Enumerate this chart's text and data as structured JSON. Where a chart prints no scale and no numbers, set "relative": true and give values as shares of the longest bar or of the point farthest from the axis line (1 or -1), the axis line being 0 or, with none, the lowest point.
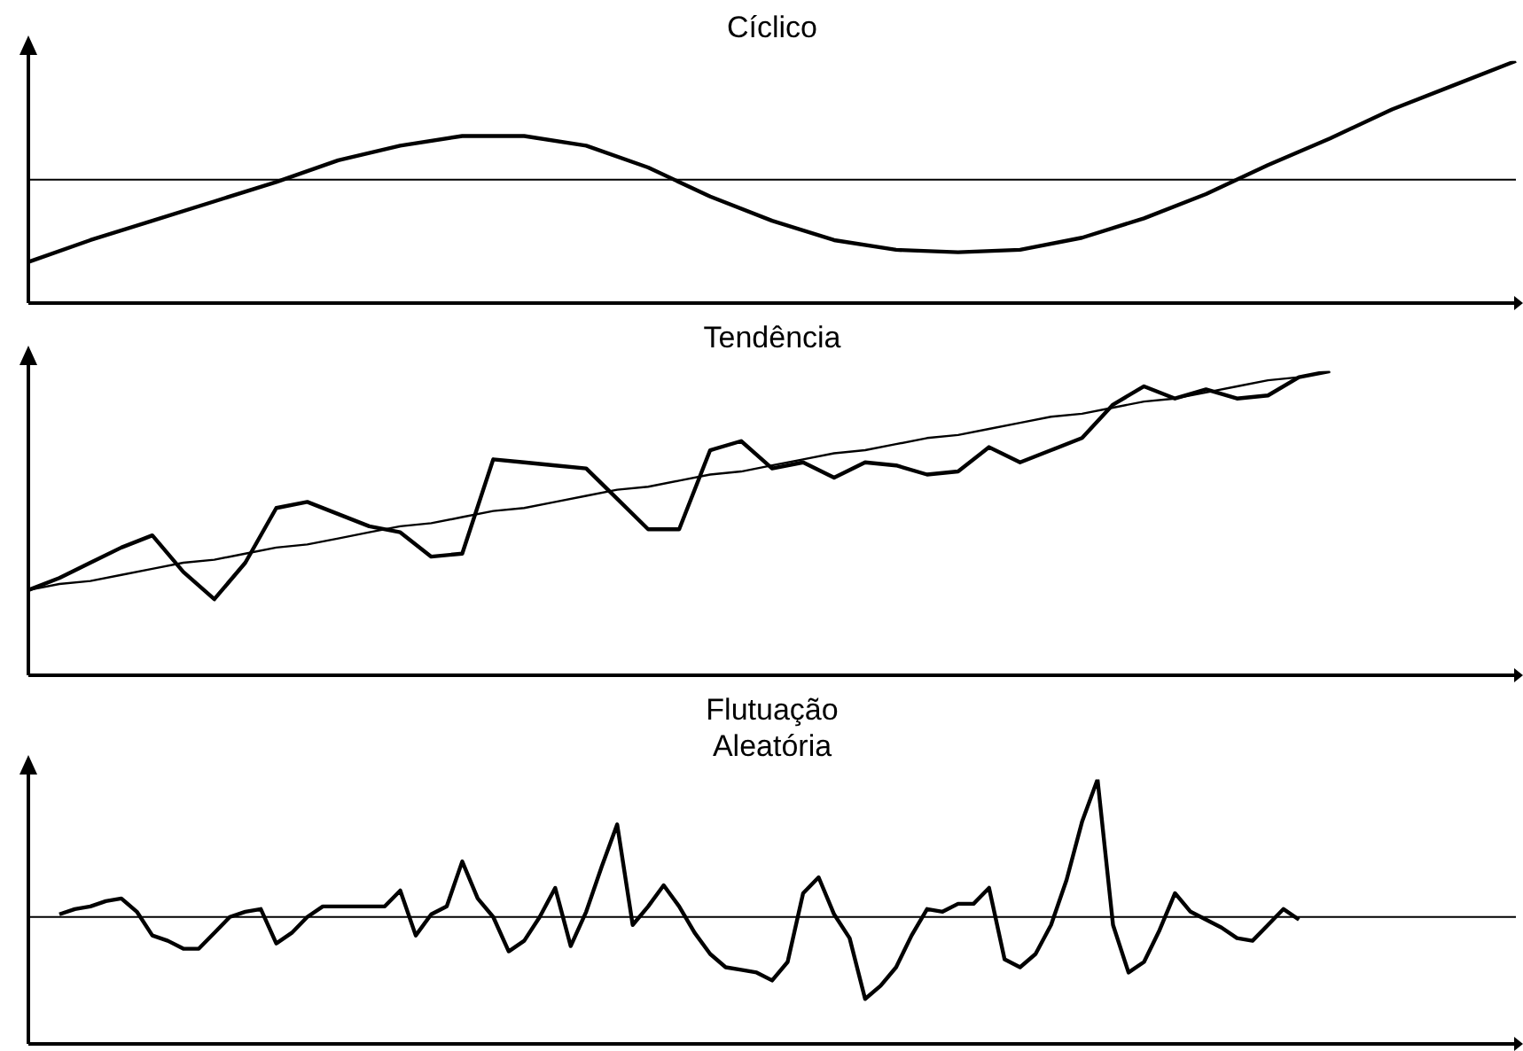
{
  "chart_data": [
    {
      "type": "line",
      "title": "Cíclico",
      "relative": true,
      "categories": [
        null,
        null,
        null,
        null,
        null,
        null,
        null,
        null,
        null,
        null,
        null,
        null,
        null,
        null,
        null,
        null,
        null,
        null,
        null,
        null,
        null,
        null,
        null,
        null,
        null
      ],
      "series": [
        {
          "color": "#000000",
          "values": [
            0.17,
            0.26,
            0.34,
            0.42,
            0.5,
            0.59,
            0.65,
            0.69,
            0.69,
            0.65,
            0.56,
            0.44,
            0.34,
            0.26,
            0.22,
            0.21,
            0.22,
            0.27,
            0.35,
            0.45,
            0.57,
            0.68,
            0.8,
            0.9,
            1
          ]
        }
      ],
      "ref_lines": [
        {
          "axis": "y",
          "value": 0.51,
          "color": "#000000"
        }
      ]
    },
    {
      "type": "line",
      "title": "Tendência",
      "relative": true,
      "categories": [
        null,
        null,
        null,
        null,
        null,
        null,
        null,
        null,
        null,
        null,
        null,
        null,
        null,
        null,
        null,
        null,
        null,
        null,
        null,
        null,
        null,
        null,
        null,
        null,
        null,
        null,
        null,
        null,
        null,
        null,
        null,
        null,
        null,
        null,
        null,
        null,
        null,
        null,
        null,
        null,
        null,
        null,
        null,
        null,
        null,
        null,
        null,
        null,
        null
      ],
      "series": [
        {
          "color": "#000000",
          "values": [
            0.28,
            0.32,
            0.37,
            0.42,
            0.46,
            0.34,
            0.25,
            0.37,
            0.55,
            0.57,
            0.53,
            0.49,
            0.47,
            0.39,
            0.4,
            0.71,
            0.7,
            0.69,
            0.68,
            0.58,
            0.48,
            0.48,
            0.74,
            0.77,
            0.68,
            0.7,
            0.65,
            0.7,
            0.69,
            0.66,
            0.67,
            0.75,
            0.7,
            0.74,
            0.78,
            0.89,
            0.95,
            0.91,
            0.94,
            0.91,
            0.92,
            0.98,
            1,
            null,
            null,
            null,
            null,
            null,
            null
          ]
        },
        {
          "color": "#000000",
          "values": [
            0.28,
            0.3,
            0.31,
            0.33,
            0.35,
            0.37,
            0.38,
            0.4,
            0.42,
            0.43,
            0.45,
            0.47,
            0.49,
            0.5,
            0.52,
            0.54,
            0.55,
            0.57,
            0.59,
            0.61,
            0.62,
            0.64,
            0.66,
            0.67,
            0.69,
            0.71,
            0.73,
            0.74,
            0.76,
            0.78,
            0.79,
            0.81,
            0.83,
            0.85,
            0.86,
            0.88,
            0.9,
            0.91,
            0.93,
            0.95,
            0.97,
            0.98,
            1,
            null,
            null,
            null,
            null,
            null,
            null
          ]
        }
      ]
    },
    {
      "type": "line",
      "title": "Flutuação\nAleatória",
      "relative": true,
      "categories": [
        null,
        null,
        null,
        null,
        null,
        null,
        null,
        null,
        null,
        null,
        null,
        null,
        null,
        null,
        null,
        null,
        null,
        null,
        null,
        null,
        null,
        null,
        null,
        null,
        null,
        null,
        null,
        null,
        null,
        null,
        null,
        null,
        null,
        null,
        null,
        null,
        null,
        null,
        null,
        null,
        null,
        null,
        null,
        null,
        null,
        null,
        null,
        null,
        null,
        null,
        null,
        null,
        null,
        null,
        null,
        null,
        null,
        null,
        null,
        null,
        null,
        null,
        null,
        null,
        null,
        null,
        null,
        null,
        null,
        null,
        null,
        null,
        null,
        null,
        null,
        null,
        null,
        null,
        null,
        null,
        null,
        null,
        null,
        null,
        null,
        null,
        null,
        null,
        null,
        null,
        null,
        null,
        null,
        null,
        null,
        null,
        null
      ],
      "series": [
        {
          "color": "#000000",
          "values": [
            null,
            null,
            0.49,
            0.51,
            0.52,
            0.54,
            0.55,
            0.5,
            0.41,
            0.39,
            0.36,
            0.36,
            0.42,
            0.48,
            0.5,
            0.51,
            0.38,
            0.42,
            0.48,
            0.52,
            0.52,
            0.52,
            0.52,
            0.52,
            0.58,
            0.41,
            0.49,
            0.52,
            0.69,
            0.55,
            0.48,
            0.35,
            0.39,
            0.48,
            0.59,
            0.37,
            0.5,
            0.67,
            0.83,
            0.45,
            0.52,
            0.6,
            0.52,
            0.42,
            0.34,
            0.29,
            0.28,
            0.27,
            0.24,
            0.31,
            0.57,
            0.63,
            0.49,
            0.4,
            0.17,
            0.22,
            0.29,
            0.41,
            0.51,
            0.5,
            0.53,
            0.53,
            0.59,
            0.32,
            0.29,
            0.34,
            0.45,
            0.62,
            0.84,
            1,
            0.45,
            0.27,
            0.31,
            0.43,
            0.57,
            0.5,
            0.47,
            0.44,
            0.4,
            0.39,
            0.45,
            0.51,
            0.47,
            null,
            null,
            null,
            null,
            null,
            null,
            null,
            null,
            null,
            null,
            null,
            null,
            null,
            null
          ]
        }
      ],
      "ref_lines": [
        {
          "axis": "y",
          "value": 0.48,
          "color": "#000000"
        }
      ]
    }
  ]
}
